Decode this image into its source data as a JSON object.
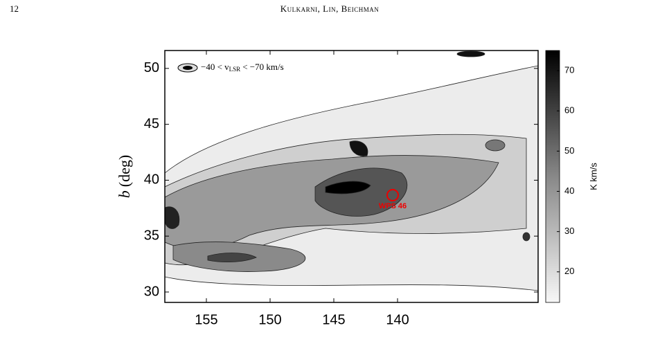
{
  "header": {
    "page_number": "12",
    "running_title": "Kulkarni, Lin, Beichman"
  },
  "figure": {
    "legend": {
      "before": "−40 < v",
      "subscript": "LSR",
      "after": "< −70 km/s"
    },
    "annotation": "WPS 46",
    "y_label": {
      "symbol": "b",
      "unit": "(deg)"
    },
    "xlim": [
      158.26,
      128.97
    ],
    "xticks": [
      155,
      150,
      145,
      140
    ],
    "ylim": [
      29.07,
      51.6
    ],
    "yticks": [
      30,
      35,
      40,
      45,
      50
    ],
    "colorbar": {
      "label": "K km/s",
      "lim": [
        12.4,
        75
      ],
      "ticks": [
        20,
        30,
        40,
        50,
        60,
        70
      ]
    }
  }
}
